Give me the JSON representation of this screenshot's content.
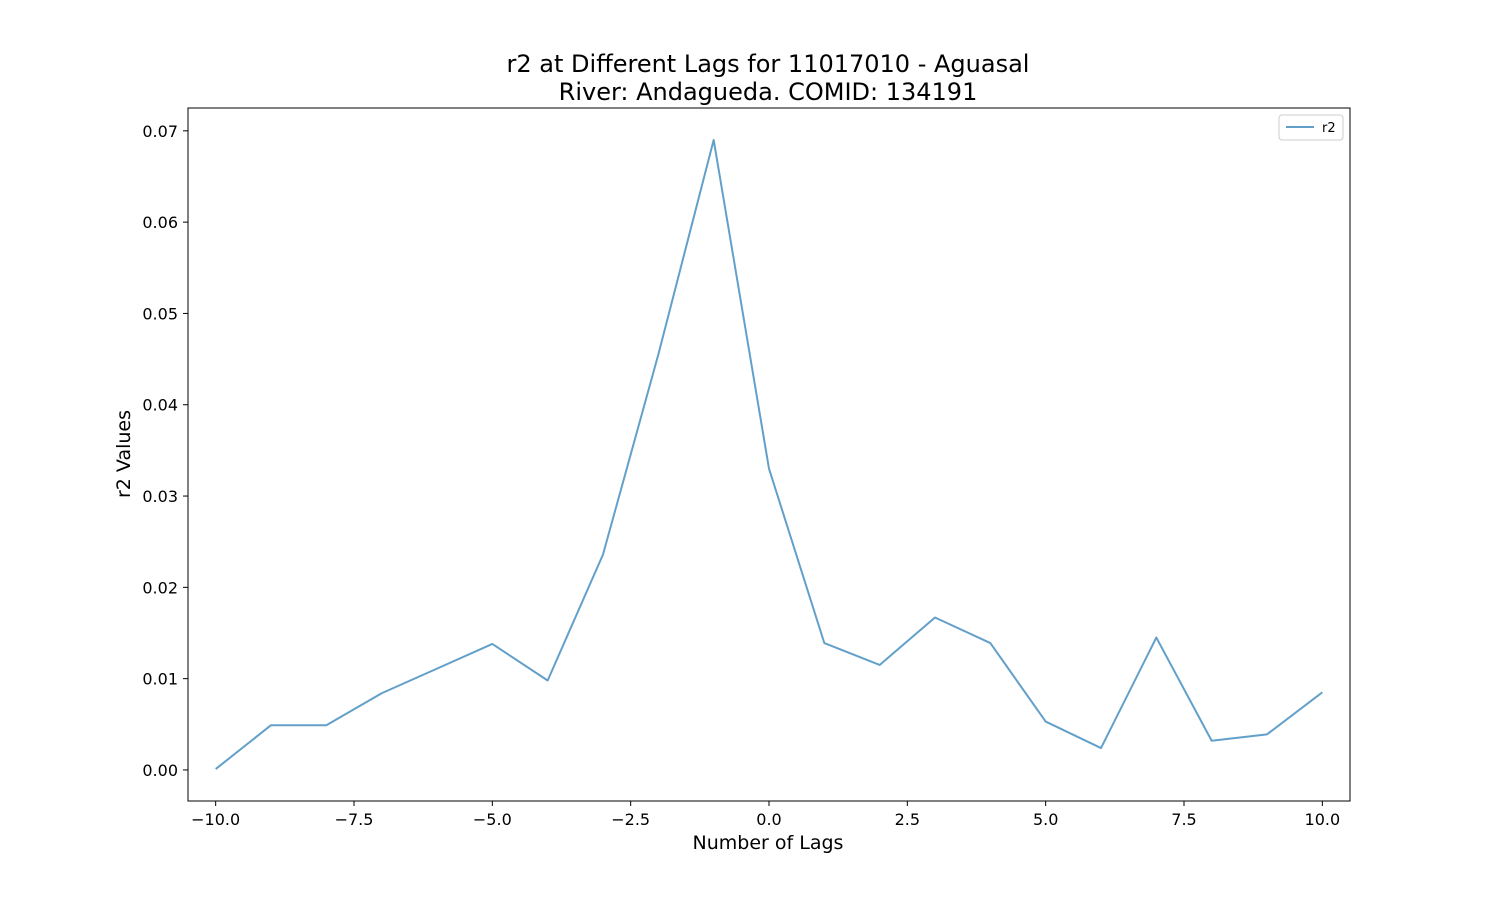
{
  "chart_data": {
    "type": "line",
    "title_line1": "r2 at Different Lags for 11017010 - Aguasal",
    "title_line2": "River: Andagueda. COMID: 134191",
    "xlabel": "Number of Lags",
    "ylabel": "r2 Values",
    "xlim": [
      -10.5,
      10.5
    ],
    "ylim": [
      -0.0034,
      0.0725
    ],
    "x_ticks": [
      -10.0,
      -7.5,
      -5.0,
      -2.5,
      0.0,
      2.5,
      5.0,
      7.5,
      10.0
    ],
    "x_tick_labels": [
      "−10.0",
      "−7.5",
      "−5.0",
      "−2.5",
      "0.0",
      "2.5",
      "5.0",
      "7.5",
      "10.0"
    ],
    "y_ticks": [
      0.0,
      0.01,
      0.02,
      0.03,
      0.04,
      0.05,
      0.06,
      0.07
    ],
    "y_tick_labels": [
      "0.00",
      "0.01",
      "0.02",
      "0.03",
      "0.04",
      "0.05",
      "0.06",
      "0.07"
    ],
    "legend_position": "top-right",
    "grid": false,
    "series": [
      {
        "name": "r2",
        "color": "#1f77b4",
        "x": [
          -10,
          -9,
          -8,
          -7,
          -6,
          -5,
          -4,
          -3,
          -2,
          -1,
          0,
          1,
          2,
          3,
          4,
          5,
          6,
          7,
          8,
          9,
          10
        ],
        "values": [
          0.0001,
          0.0049,
          0.0049,
          0.0084,
          0.0111,
          0.0138,
          0.0098,
          0.0236,
          0.0455,
          0.069,
          0.033,
          0.0139,
          0.0115,
          0.0167,
          0.0139,
          0.0053,
          0.0024,
          0.0145,
          0.0032,
          0.0039,
          0.0085
        ]
      }
    ]
  }
}
